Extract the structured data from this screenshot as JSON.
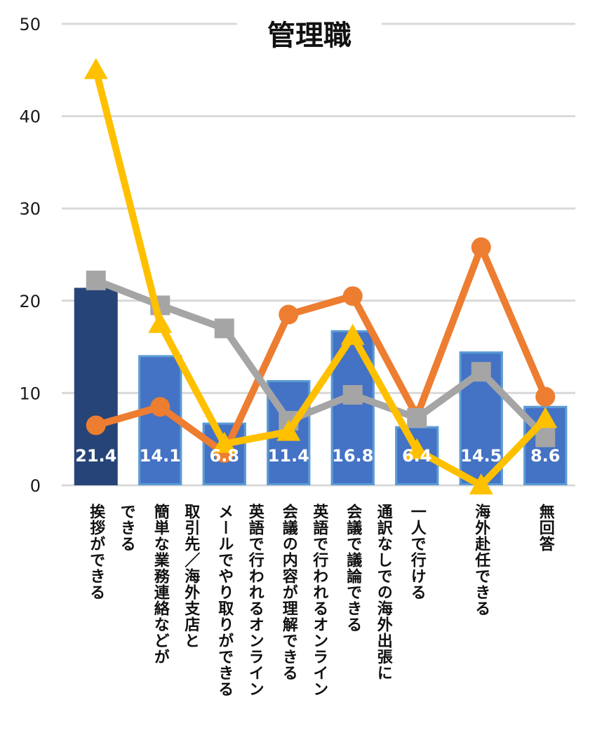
{
  "chart_data": {
    "type": "bar",
    "title": "管理職",
    "ylim": [
      0,
      50
    ],
    "yticks": [
      0,
      10,
      20,
      30,
      40,
      50
    ],
    "grid": true,
    "categories": [
      [
        "挨拶ができる"
      ],
      [
        "簡単な業務連絡などが",
        "できる"
      ],
      [
        "メールでやり取りができる",
        "取引先／海外支店と"
      ],
      [
        "会議の内容が理解できる",
        "英語で行われるオンライン"
      ],
      [
        "会議で議論できる",
        "英語で行われるオンライン"
      ],
      [
        "一人で行ける",
        "通訳なしでの海外出張に"
      ],
      [
        "海外赴任できる"
      ],
      [
        "無回答"
      ]
    ],
    "series": [
      {
        "kind": "bar",
        "values": [
          21.4,
          14.1,
          6.8,
          11.4,
          16.8,
          6.4,
          14.5,
          8.6
        ],
        "data_labels": [
          "21.4",
          "14.1",
          "6.8",
          "11.4",
          "16.8",
          "6.4",
          "14.5",
          "8.6"
        ],
        "color": "#4472c4",
        "highlight_color": "#264478",
        "highlight_index": 0
      },
      {
        "kind": "line",
        "marker": "circle",
        "color": "#ed7d31",
        "values": [
          6.5,
          8.5,
          3.5,
          18.5,
          20.5,
          7.5,
          25.8,
          9.6
        ]
      },
      {
        "kind": "line",
        "marker": "square",
        "color": "#a5a5a5",
        "values": [
          22.2,
          19.5,
          17.0,
          7.0,
          9.8,
          7.3,
          12.3,
          5.2
        ]
      },
      {
        "kind": "line",
        "marker": "triangle",
        "color": "#ffc000",
        "values": [
          45.0,
          17.5,
          4.5,
          5.8,
          16.2,
          3.8,
          0.0,
          7.2
        ]
      }
    ]
  }
}
